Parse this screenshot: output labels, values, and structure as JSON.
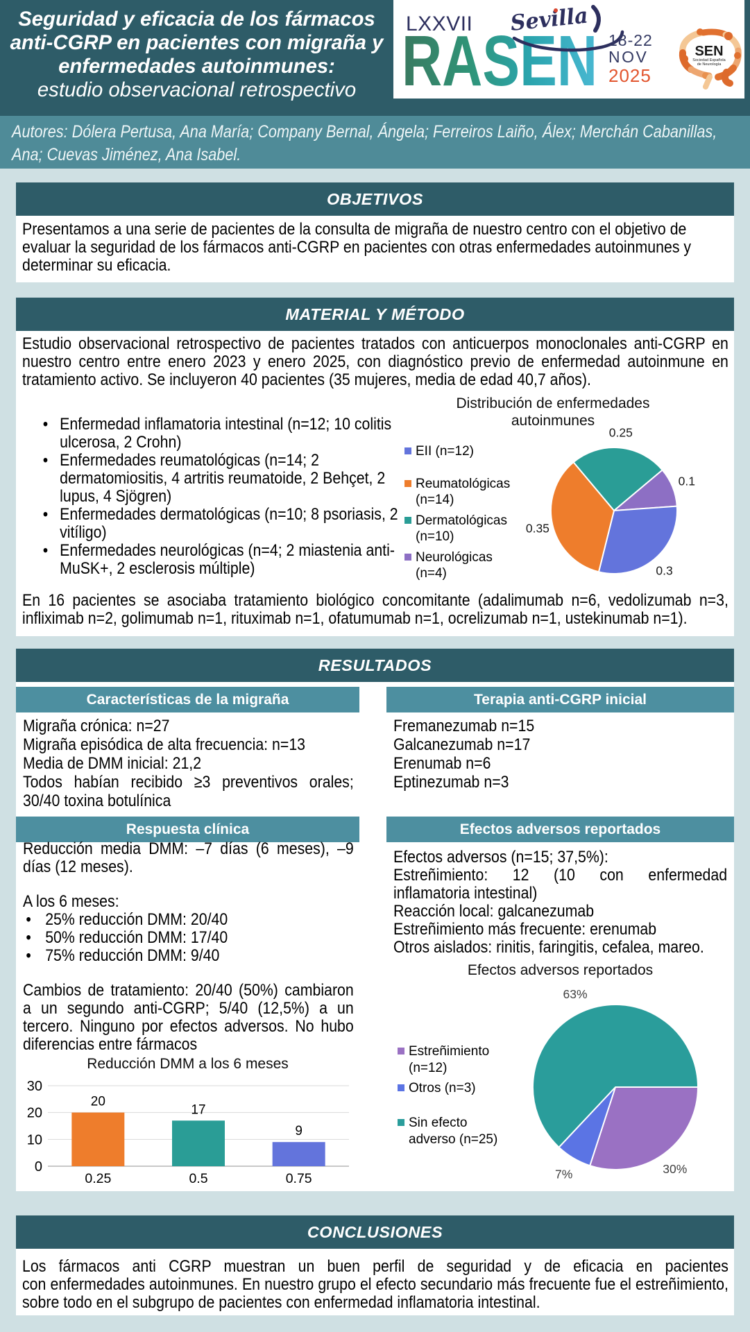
{
  "header": {
    "title_lines": [
      "Seguridad y eficacia de los fármacos",
      "anti-CGRP en pacientes con migraña y",
      "enfermedades autoinmunes:",
      "estudio observacional retrospectivo"
    ],
    "authors_lines": [
      "Autores: Dólera Pertusa, Ana María; Company Bernal, Ángela; Ferreiros Laiño, Álex; Merchán Cabanillas,",
      "Ana; Cuevas Jiménez, Ana Isabel."
    ]
  },
  "logo": {
    "congress_number": "LXXVII",
    "congress_name": "RASEN",
    "city": "Sevilla",
    "date_days": "18-22",
    "date_month": "NOV",
    "date_year": "2025",
    "sen_acronym": "SEN",
    "sen_name_line1": "Sociedad Española",
    "sen_name_line2": "de Neurología"
  },
  "sections": {
    "objetivos": {
      "heading": "OBJETIVOS",
      "lines": [
        "Presentamos a una serie de pacientes de la consulta de migraña de nuestro centro con el objetivo de",
        "evaluar la seguridad de los fármacos anti-CGRP en pacientes con otras enfermedades autoinmunes y",
        "determinar su eficacia."
      ]
    },
    "material": {
      "heading": "MATERIAL Y MÉTODO",
      "intro_lines": [
        "Estudio observacional retrospectivo de pacientes tratados con anticuerpos monoclonales anti-CGRP en",
        "nuestro centro entre enero 2023 y enero 2025, con diagnóstico previo de enfermedad autoinmune en",
        "tratamiento activo. Se incluyeron 40 pacientes (35 mujeres, media de edad 40,7 años)."
      ],
      "bullets": [
        [
          "Enfermedad inflamatoria intestinal (n=12; 10 colitis",
          "ulcerosa, 2 Crohn)"
        ],
        [
          "Enfermedades reumatológicas (n=14; 2",
          "dermatomiositis, 4 artritis reumatoide, 2 Behçet, 2",
          "lupus, 4 Sjögren)"
        ],
        [
          "Enfermedades dermatológicas (n=10; 8 psoriasis, 2",
          "vitíligo)"
        ],
        [
          "Enfermedades neurológicas (n=4; 2 miastenia anti-",
          "MuSK+, 2 esclerosis múltiple)"
        ]
      ],
      "closing_lines": [
        "En 16 pacientes se asociaba tratamiento biológico concomitante (adalimumab n=6, vedolizumab n=3,",
        "infliximab n=2, golimumab n=1, rituximab n=1, ofatumumab n=1, ocrelizumab n=1, ustekinumab n=1)."
      ]
    },
    "resultados": {
      "heading": "RESULTADOS",
      "migraine": {
        "heading": "Características de la migraña",
        "lines": [
          "Migraña crónica: n=27",
          "Migraña episódica de alta frecuencia: n=13",
          "Media de DMM inicial: 21,2"
        ],
        "jpara": [
          "Todos habían recibido ≥3 preventivos orales;",
          "30/40 toxina botulínica"
        ]
      },
      "therapy": {
        "heading": "Terapia anti-CGRP inicial",
        "lines": [
          "Fremanezumab n=15",
          "Galcanezumab n=17",
          "Erenumab n=6",
          "Eptinezumab n=3"
        ]
      },
      "clinical": {
        "heading": "Respuesta clínica",
        "para1": [
          "Reducción media DMM: –7 días (6 meses), –9",
          "días (12 meses)."
        ],
        "sublead": "A los 6 meses:",
        "bullets": [
          "25% reducción DMM: 20/40",
          "50% reducción DMM: 17/40",
          "75% reducción DMM: 9/40"
        ],
        "para2": [
          "Cambios de tratamiento: 20/40 (50%) cambiaron",
          "a un segundo anti-CGRP; 5/40 (12,5%) a un",
          "tercero. Ninguno por efectos adversos. No hubo",
          "diferencias entre fármacos"
        ]
      },
      "adverse": {
        "heading": "Efectos adversos reportados",
        "paras": [
          [
            "Efectos adversos (n=15; 37,5%):"
          ],
          [
            "Estreñimiento: 12 (10 con enfermedad",
            "inflamatoria intestinal)"
          ],
          [
            "Reacción local: galcanezumab"
          ],
          [
            "Estreñimiento más frecuente: erenumab"
          ],
          [
            "Otros aislados: rinitis, faringitis, cefalea, mareo."
          ]
        ]
      }
    },
    "conclusiones": {
      "heading": "CONCLUSIONES",
      "lines": [
        "Los fármacos anti CGRP muestran un buen perfil de seguridad y de eficacia en pacientes",
        "con enfermedades autoinmunes. En nuestro grupo el efecto secundario más frecuente fue el estreñimiento,",
        "sobre todo en el subgrupo de pacientes con enfermedad inflamatoria intestinal."
      ]
    }
  },
  "chart_data": [
    {
      "type": "pie",
      "title": "Distribución de enfermedades autoinmunes",
      "title_lines": [
        "Distribución de enfermedades",
        "autoinmunes"
      ],
      "legend": [
        [
          "EII (n=12)"
        ],
        [
          "Reumatológicas",
          "(n=14)"
        ],
        [
          "Dermatológicas",
          "(n=10)"
        ],
        [
          "Neurológicas",
          "(n=4)"
        ]
      ],
      "labels": [
        "EII (n=12)",
        "Reumatológicas (n=14)",
        "Dermatológicas (n=10)",
        "Neurológicas (n=4)"
      ],
      "values": [
        0.3,
        0.35,
        0.25,
        0.1
      ],
      "slice_labels": [
        "0.3",
        "0.35",
        "0.25",
        "0.1"
      ],
      "colors": [
        "#6374dc",
        "#ee7d2c",
        "#2a9d96",
        "#8d6fc4"
      ],
      "start_angle": -40,
      "draw_order": [
        2,
        3,
        0,
        1
      ],
      "legend_position": "left"
    },
    {
      "type": "bar",
      "title": "Reducción DMM a los 6 meses",
      "categories": [
        "0.25",
        "0.5",
        "0.75"
      ],
      "values": [
        20,
        17,
        9
      ],
      "colors": [
        "#ee7d2c",
        "#2a9d96",
        "#6374dc"
      ],
      "ylim": [
        0,
        30
      ],
      "yticks": [
        0,
        10,
        20,
        30
      ],
      "grid": true,
      "legend_position": "none"
    },
    {
      "type": "pie",
      "title": "Efectos adversos reportados",
      "title_lines": [
        "Efectos adversos reportados"
      ],
      "legend": [
        [
          "Estreñimiento",
          "(n=12)"
        ],
        [
          "Otros (n=3)"
        ],
        [
          "Sin efecto",
          "adverso (n=25)"
        ]
      ],
      "labels": [
        "Estreñimiento (n=12)",
        "Otros (n=3)",
        "Sin efecto adverso (n=25)"
      ],
      "values": [
        30,
        7,
        63
      ],
      "slice_labels": [
        "30%",
        "7%",
        "63%"
      ],
      "colors": [
        "#9a71c3",
        "#5b74e4",
        "#2a9d9b"
      ],
      "start_angle": 90,
      "draw_order": [
        0,
        1,
        2
      ],
      "legend_position": "left"
    }
  ]
}
